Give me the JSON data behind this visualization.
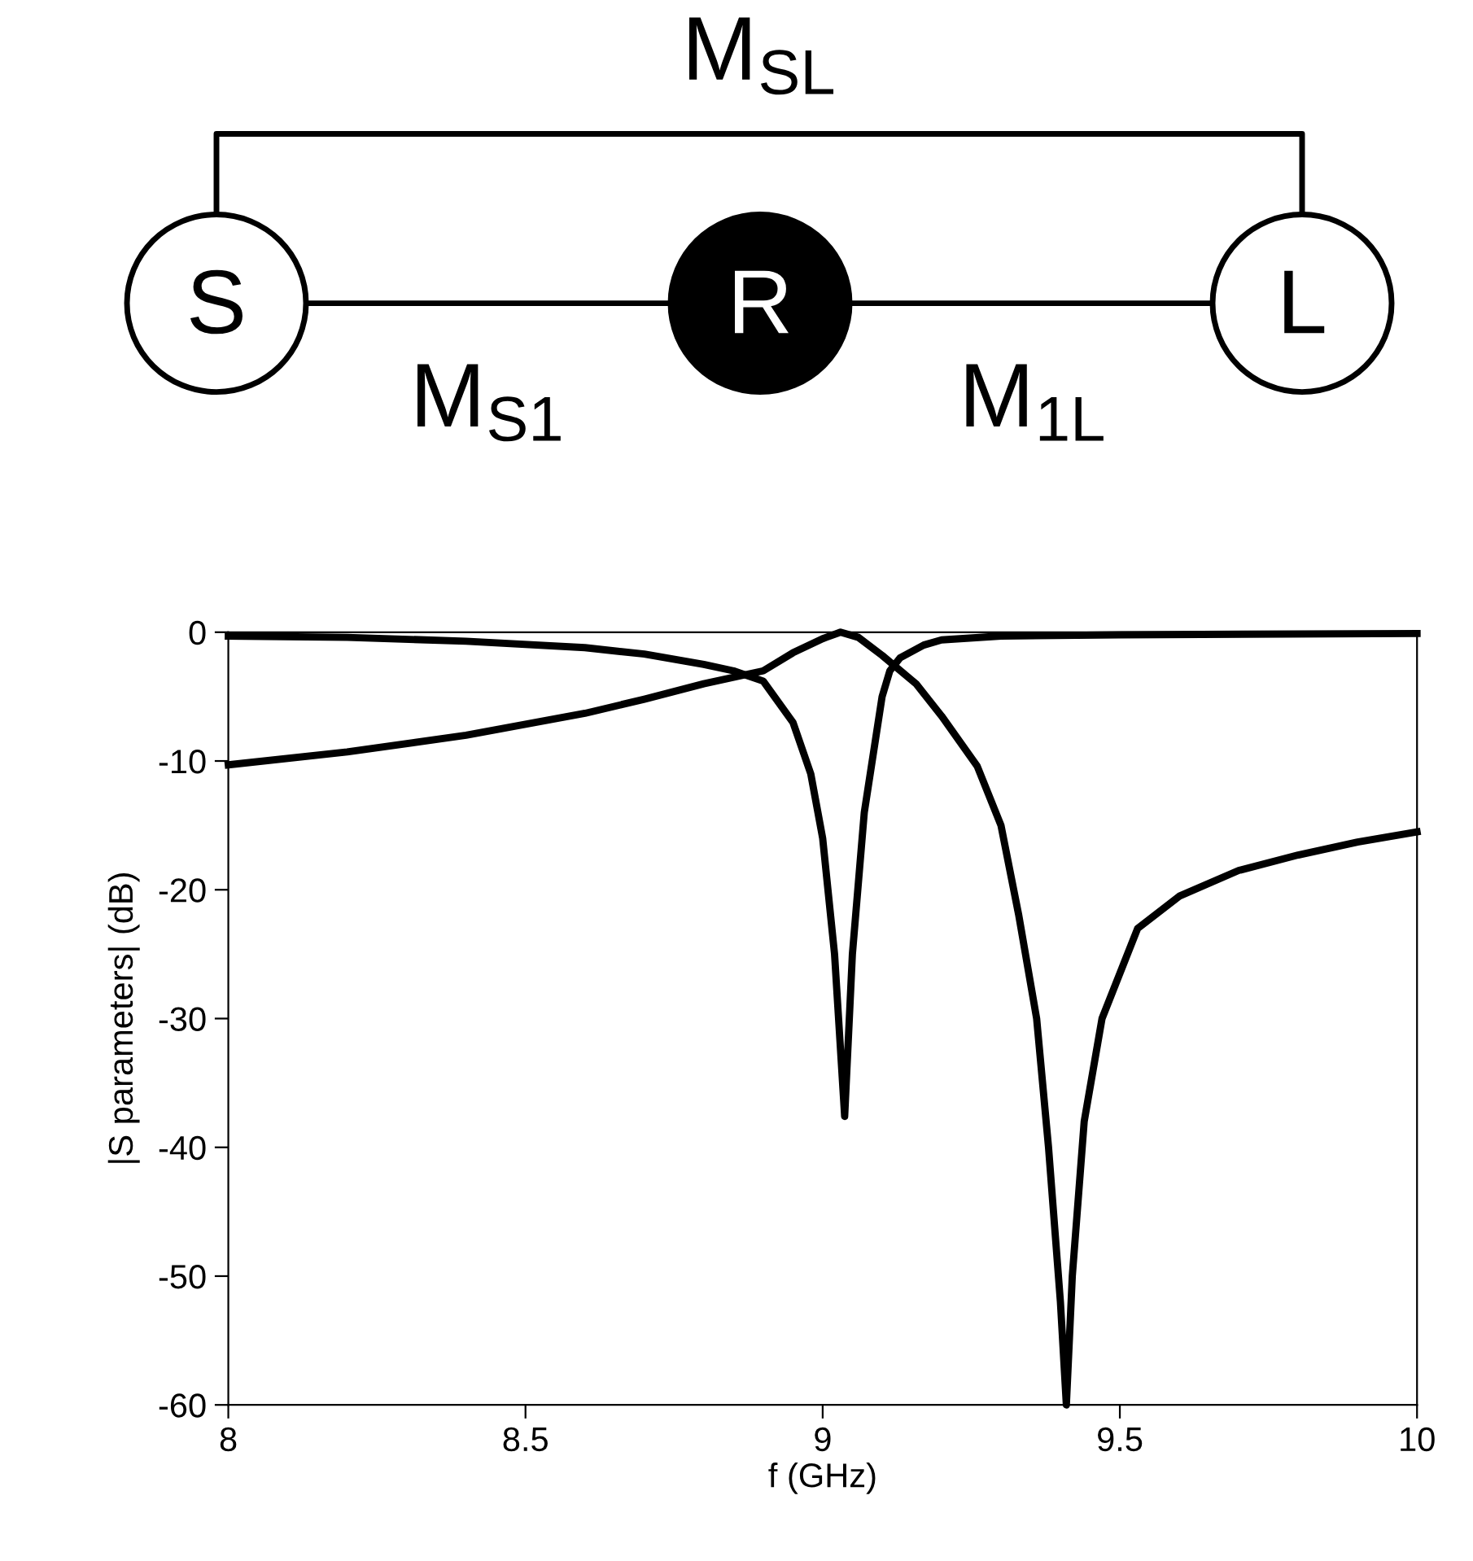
{
  "chart_data": [
    {
      "type": "other",
      "annotations": [
        "M$_{SL}$",
        "S",
        "R",
        "L",
        "M$_{S1}$",
        "M$_{1L}$"
      ]
    },
    {
      "type": "line",
      "xlabel": "f (GHz)",
      "ylabel": "|S parameters| (dB)",
      "xlim": [
        8,
        10
      ],
      "ylim": [
        -60,
        0
      ],
      "xticks": [
        8,
        {
          "value": 8.5,
          "label": "8.5"
        },
        9,
        {
          "value": 9.5,
          "label": "9.5"
        },
        10
      ],
      "yticks": [
        0,
        -10,
        -20,
        -30,
        -40,
        -50,
        -60
      ],
      "grid": false,
      "marker": "none",
      "line_style": "solid",
      "series": [
        {
          "color": "#000000",
          "x": [
            8.0,
            8.2,
            8.4,
            8.6,
            8.7,
            8.8,
            8.85,
            8.9,
            8.95,
            8.98,
            9.0,
            9.02,
            9.037,
            9.05,
            9.07,
            9.1,
            9.113,
            9.13,
            9.17,
            9.2,
            9.3,
            9.5,
            10.0
          ],
          "values": [
            -0.3,
            -0.4,
            -0.7,
            -1.2,
            -1.7,
            -2.5,
            -3.0,
            -3.8,
            -7.0,
            -11,
            -16,
            -25,
            -37.6,
            -25,
            -14,
            -5,
            -3.0,
            -2.0,
            -1.0,
            -0.6,
            -0.3,
            -0.2,
            -0.1
          ]
        },
        {
          "color": "#000000",
          "x": [
            8.0,
            8.2,
            8.4,
            8.6,
            8.7,
            8.8,
            8.9,
            8.95,
            9.0,
            9.03,
            9.06,
            9.1,
            9.157,
            9.2,
            9.26,
            9.3,
            9.33,
            9.36,
            9.38,
            9.4,
            9.41,
            9.42,
            9.44,
            9.47,
            9.53,
            9.6,
            9.7,
            9.8,
            9.9,
            10.0
          ],
          "values": [
            -10.3,
            -9.3,
            -8.0,
            -6.3,
            -5.2,
            -4.0,
            -3.0,
            -1.6,
            -0.5,
            0,
            -0.4,
            -1.8,
            -4.0,
            -6.5,
            -10.4,
            -15,
            -22,
            -30,
            -40,
            -52,
            -60,
            -50,
            -38,
            -30,
            -23,
            -20.5,
            -18.5,
            -17.3,
            -16.3,
            -15.5
          ]
        }
      ]
    }
  ]
}
